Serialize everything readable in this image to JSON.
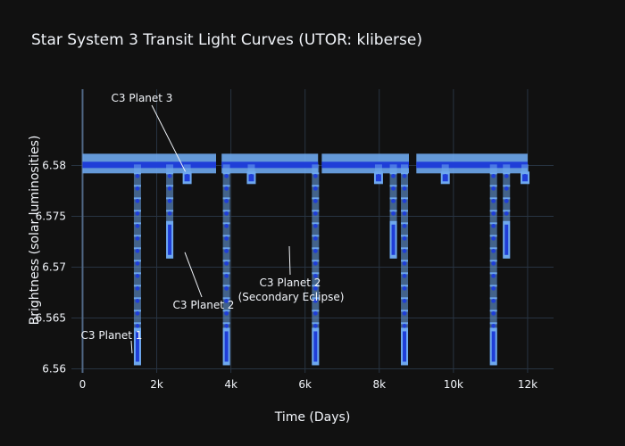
{
  "chart_data": {
    "type": "scatter",
    "title": "Star System 3 Transit Light Curves (UTOR: kliberse)",
    "xlabel": "Time (Days)",
    "ylabel": "Brightness (solar luminosities)",
    "xlim": [
      -300,
      12700
    ],
    "ylim": [
      6.5596,
      6.5875
    ],
    "xticks": [
      0,
      2000,
      4000,
      6000,
      8000,
      10000,
      12000
    ],
    "xtick_labels": [
      "0",
      "2k",
      "4k",
      "6k",
      "8k",
      "10k",
      "12k"
    ],
    "yticks": [
      6.56,
      6.565,
      6.57,
      6.575,
      6.58
    ],
    "ytick_labels": [
      "6.56",
      "6.565",
      "6.57",
      "6.575",
      "6.58"
    ],
    "grid": true,
    "legend": "none",
    "colors": {
      "background": "#111111",
      "errorbar": "#6ea8ee",
      "marker": "#1f3ed8",
      "grid": "#283442"
    },
    "baseline": {
      "value": 6.5801,
      "segments": [
        [
          0,
          3600
        ],
        [
          3750,
          6350
        ],
        [
          6450,
          8800
        ],
        [
          9000,
          12000
        ]
      ]
    },
    "dips": [
      {
        "x": 1480,
        "depth_min": 6.5607,
        "label": ""
      },
      {
        "x": 2350,
        "depth_min": 6.5712,
        "label": ""
      },
      {
        "x": 2820,
        "depth_min": 6.5787,
        "label": ""
      },
      {
        "x": 3880,
        "depth_min": 6.5607,
        "label": ""
      },
      {
        "x": 4550,
        "depth_min": 6.5787,
        "label": ""
      },
      {
        "x": 6280,
        "depth_min": 6.5607,
        "label": ""
      },
      {
        "x": 7980,
        "depth_min": 6.5787,
        "label": ""
      },
      {
        "x": 8380,
        "depth_min": 6.5712,
        "label": ""
      },
      {
        "x": 8680,
        "depth_min": 6.5607,
        "label": ""
      },
      {
        "x": 9780,
        "depth_min": 6.5787,
        "label": ""
      },
      {
        "x": 11080,
        "depth_min": 6.5607,
        "label": ""
      },
      {
        "x": 11430,
        "depth_min": 6.5712,
        "label": ""
      },
      {
        "x": 11930,
        "depth_min": 6.5787,
        "label": ""
      }
    ],
    "annotations": [
      {
        "text": "C3 Planet 1",
        "x": 1480,
        "y": 6.5617
      },
      {
        "text": "C3 Planet 2",
        "x": 2520,
        "y": 6.5712
      },
      {
        "text": "C3 Planet 3",
        "x": 2820,
        "y": 6.5787
      },
      {
        "text": "C3 Planet 2",
        "text2": "(Secondary Eclipse)",
        "x": 5440,
        "y": 6.5705
      }
    ]
  }
}
